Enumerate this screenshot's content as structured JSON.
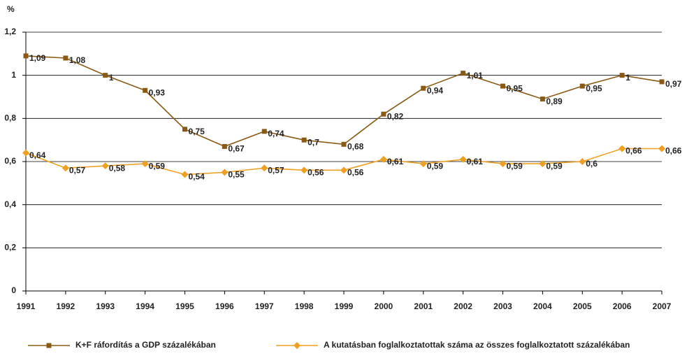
{
  "chart_data": {
    "type": "line",
    "y_label": "%",
    "categories": [
      "1991",
      "1992",
      "1993",
      "1994",
      "1995",
      "1996",
      "1997",
      "1998",
      "1999",
      "2000",
      "2001",
      "2002",
      "2003",
      "2004",
      "2005",
      "2006",
      "2007"
    ],
    "series": [
      {
        "name": "K+F ráfordítás a GDP százalékában",
        "color": "#8a5a14",
        "marker": "square",
        "values": [
          1.09,
          1.08,
          1,
          0.93,
          0.75,
          0.67,
          0.74,
          0.7,
          0.68,
          0.82,
          0.94,
          1.01,
          0.95,
          0.89,
          0.95,
          1,
          0.97
        ],
        "value_labels": [
          "1,09",
          "1,08",
          "1",
          "0,93",
          "0,75",
          "0,67",
          "0,74",
          "0,7",
          "0,68",
          "0,82",
          "0,94",
          "1,01",
          "0,95",
          "0,89",
          "0,95",
          "1",
          "0,97"
        ]
      },
      {
        "name": "A kutatásban foglalkoztatottak száma az összes foglalkoztatott százalékában",
        "color": "#f0a020",
        "marker": "diamond",
        "values": [
          0.64,
          0.57,
          0.58,
          0.59,
          0.54,
          0.55,
          0.57,
          0.56,
          0.56,
          0.61,
          0.59,
          0.61,
          0.59,
          0.59,
          0.6,
          0.66,
          0.66
        ],
        "value_labels": [
          "0,64",
          "0,57",
          "0,58",
          "0,59",
          "0,54",
          "0,55",
          "0,57",
          "0,56",
          "0,56",
          "0,61",
          "0,59",
          "0,61",
          "0,59",
          "0,59",
          "0,6",
          "0,66",
          "0,66"
        ]
      }
    ],
    "ylim": [
      0,
      1.2
    ],
    "yticks": [
      0,
      {
        "value": 0.2,
        "label": "0,2"
      },
      {
        "value": 0.4,
        "label": "0,4"
      },
      {
        "value": 0.6,
        "label": "0,6"
      },
      {
        "value": 0.8,
        "label": "0,8"
      },
      1,
      {
        "value": 1.2,
        "label": "1,2"
      }
    ],
    "grid": true,
    "legend": "bottom"
  }
}
